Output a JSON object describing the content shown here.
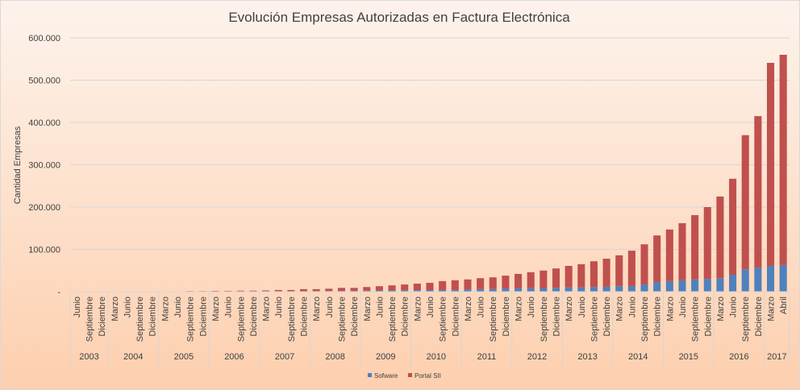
{
  "chart_data": {
    "type": "bar",
    "stacked": true,
    "title": "Evolución Empresas Autorizadas en Factura Electrónica",
    "xlabel": "",
    "ylabel": "Cantidad Empresas",
    "ylim": [
      0,
      600000
    ],
    "yticks": [
      0,
      100000,
      200000,
      300000,
      400000,
      500000,
      600000
    ],
    "ytick_labels": [
      "-",
      "100.000",
      "200.000",
      "300.000",
      "400.000",
      "500.000",
      "600.000"
    ],
    "grid": true,
    "legend_position": "bottom",
    "colors": {
      "Sofware": "#4f81bd",
      "Portal SII": "#c0504d"
    },
    "groups": [
      {
        "year": "2003",
        "months": [
          "Junio",
          "Septiembre",
          "Diciembre"
        ]
      },
      {
        "year": "2004",
        "months": [
          "Marzo",
          "Junio",
          "Septiembre",
          "Diciembre"
        ]
      },
      {
        "year": "2005",
        "months": [
          "Marzo",
          "Junio",
          "Septiembre",
          "Diciembre"
        ]
      },
      {
        "year": "2006",
        "months": [
          "Marzo",
          "Junio",
          "Septiembre",
          "Diciembre"
        ]
      },
      {
        "year": "2007",
        "months": [
          "Marzo",
          "Junio",
          "Septiembre",
          "Diciembre"
        ]
      },
      {
        "year": "2008",
        "months": [
          "Marzo",
          "Junio",
          "Septiembre",
          "Diciembre"
        ]
      },
      {
        "year": "2009",
        "months": [
          "Marzo",
          "Junio",
          "Septiembre",
          "Diciembre"
        ]
      },
      {
        "year": "2010",
        "months": [
          "Marzo",
          "Junio",
          "Septiembre",
          "Diciembre"
        ]
      },
      {
        "year": "2011",
        "months": [
          "Marzo",
          "Junio",
          "Septiembre",
          "Diciembre"
        ]
      },
      {
        "year": "2012",
        "months": [
          "Marzo",
          "Junio",
          "Septiembre",
          "Diciembre"
        ]
      },
      {
        "year": "2013",
        "months": [
          "Marzo",
          "Junio",
          "Septiembre",
          "Diciembre"
        ]
      },
      {
        "year": "2014",
        "months": [
          "Marzo",
          "Junio",
          "Septiembre",
          "Diciembre"
        ]
      },
      {
        "year": "2015",
        "months": [
          "Marzo",
          "Junio",
          "Septiembre",
          "Diciembre"
        ]
      },
      {
        "year": "2016",
        "months": [
          "Marzo",
          "Junio",
          "Septiembre",
          "Diciembre"
        ]
      },
      {
        "year": "2017",
        "months": [
          "Marzo",
          "Abril"
        ]
      }
    ],
    "series": [
      {
        "name": "Sofware",
        "values": [
          0,
          0,
          0,
          0,
          0,
          0,
          0,
          0,
          100,
          200,
          200,
          300,
          300,
          400,
          400,
          500,
          600,
          800,
          1000,
          1200,
          1500,
          1800,
          2000,
          2300,
          2600,
          2900,
          3200,
          3500,
          3800,
          4000,
          4200,
          5500,
          6000,
          6200,
          7500,
          8000,
          8200,
          8500,
          9000,
          10000,
          10000,
          11000,
          11500,
          13000,
          13500,
          17000,
          23000,
          25000,
          27000,
          29000,
          30000,
          32000,
          40000,
          53000,
          57000,
          61000,
          63000
        ]
      },
      {
        "name": "Portal SII",
        "values": [
          0,
          0,
          0,
          0,
          0,
          0,
          0,
          0,
          800,
          1300,
          1300,
          1700,
          1700,
          2100,
          2100,
          2500,
          3400,
          3200,
          5000,
          4800,
          5500,
          7200,
          7000,
          8700,
          10400,
          12100,
          13800,
          15500,
          17200,
          21000,
          22800,
          23500,
          26000,
          27800,
          30500,
          34000,
          37800,
          41500,
          46000,
          51000,
          55000,
          61000,
          66500,
          73000,
          83500,
          95000,
          110000,
          122000,
          135000,
          152000,
          170000,
          193000,
          227000,
          317000,
          358000,
          480000,
          497000
        ]
      }
    ]
  }
}
